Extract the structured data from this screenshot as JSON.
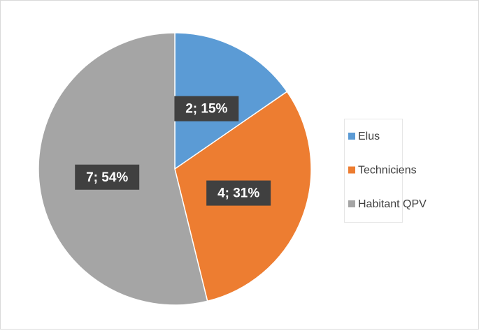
{
  "chart_data": {
    "type": "pie",
    "categories": [
      "Elus",
      "Techniciens",
      "Habitant QPV"
    ],
    "values": [
      2,
      4,
      7
    ],
    "value_labels": [
      "2; 15%",
      "4; 31%",
      "7; 54%"
    ],
    "colors": [
      "#5b9bd5",
      "#ed7d31",
      "#a5a5a5"
    ],
    "legend": "right"
  }
}
